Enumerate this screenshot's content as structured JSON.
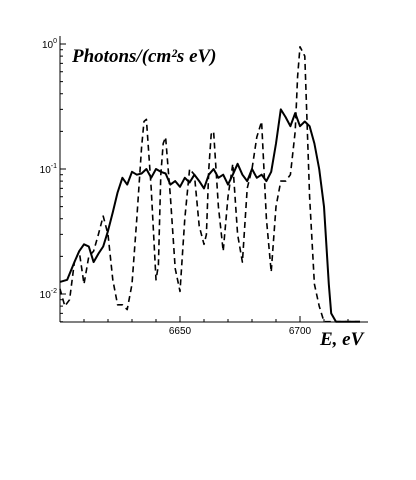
{
  "chart_data": {
    "type": "line",
    "ylabel": "Photons/(cm²s eV)",
    "xlabel": "E, eV",
    "yscale": "log",
    "xlim": [
      6600,
      6725
    ],
    "ylim": [
      0.006,
      1.0
    ],
    "xticks": [
      6650,
      6700
    ],
    "xtick_labels": [
      "6650",
      "6700"
    ],
    "yticks": [
      0.01,
      0.1,
      1.0
    ],
    "ytick_labels": [
      {
        "base": "10",
        "exp": "-2"
      },
      {
        "base": "10",
        "exp": "-1"
      },
      {
        "base": "10",
        "exp": "0"
      }
    ],
    "grid": false,
    "legend": "none",
    "series": [
      {
        "style": "solid",
        "color": "#000000",
        "x": [
          6600,
          6603,
          6606,
          6608,
          6610,
          6612,
          6614,
          6616,
          6618,
          6620,
          6622,
          6624,
          6626,
          6628,
          6630,
          6632,
          6634,
          6636,
          6638,
          6640,
          6642,
          6644,
          6646,
          6648,
          6650,
          6652,
          6654,
          6656,
          6658,
          6660,
          6662,
          6664,
          6666,
          6668,
          6670,
          6672,
          6674,
          6676,
          6678,
          6680,
          6682,
          6684,
          6686,
          6688,
          6690,
          6692,
          6694,
          6696,
          6698,
          6700,
          6702,
          6704,
          6706,
          6708,
          6710,
          6712,
          6713,
          6715,
          6725
        ],
        "y": [
          0.0125,
          0.013,
          0.018,
          0.022,
          0.025,
          0.024,
          0.018,
          0.021,
          0.024,
          0.032,
          0.045,
          0.065,
          0.085,
          0.075,
          0.095,
          0.09,
          0.092,
          0.1,
          0.085,
          0.1,
          0.095,
          0.092,
          0.075,
          0.08,
          0.072,
          0.085,
          0.078,
          0.09,
          0.08,
          0.07,
          0.09,
          0.1,
          0.085,
          0.09,
          0.075,
          0.09,
          0.11,
          0.09,
          0.08,
          0.1,
          0.085,
          0.09,
          0.08,
          0.095,
          0.16,
          0.3,
          0.26,
          0.22,
          0.28,
          0.22,
          0.24,
          0.22,
          0.16,
          0.1,
          0.05,
          0.012,
          0.007,
          0.006,
          0.006
        ]
      },
      {
        "style": "dashed",
        "color": "#000000",
        "x": [
          6600,
          6602,
          6604,
          6606,
          6608,
          6610,
          6612,
          6614,
          6616,
          6618,
          6620,
          6622,
          6624,
          6626,
          6628,
          6630,
          6632,
          6634,
          6635,
          6636,
          6638,
          6640,
          6641,
          6642,
          6643,
          6644,
          6646,
          6648,
          6650,
          6652,
          6654,
          6656,
          6658,
          6660,
          6661,
          6662,
          6663,
          6664,
          6666,
          6668,
          6670,
          6672,
          6674,
          6676,
          6678,
          6680,
          6682,
          6684,
          6686,
          6688,
          6690,
          6692,
          6694,
          6696,
          6698,
          6699,
          6700,
          6702,
          6704,
          6706,
          6708,
          6710,
          6715,
          6725
        ],
        "y": [
          0.011,
          0.008,
          0.009,
          0.018,
          0.022,
          0.012,
          0.02,
          0.022,
          0.03,
          0.042,
          0.03,
          0.013,
          0.0082,
          0.0082,
          0.0075,
          0.012,
          0.04,
          0.15,
          0.24,
          0.25,
          0.07,
          0.013,
          0.017,
          0.09,
          0.16,
          0.18,
          0.06,
          0.016,
          0.0105,
          0.04,
          0.1,
          0.09,
          0.035,
          0.025,
          0.03,
          0.1,
          0.19,
          0.2,
          0.05,
          0.022,
          0.06,
          0.11,
          0.03,
          0.018,
          0.07,
          0.1,
          0.18,
          0.24,
          0.04,
          0.015,
          0.05,
          0.08,
          0.08,
          0.09,
          0.2,
          0.55,
          0.95,
          0.8,
          0.06,
          0.012,
          0.008,
          0.006,
          0.006,
          0.006
        ]
      }
    ]
  }
}
